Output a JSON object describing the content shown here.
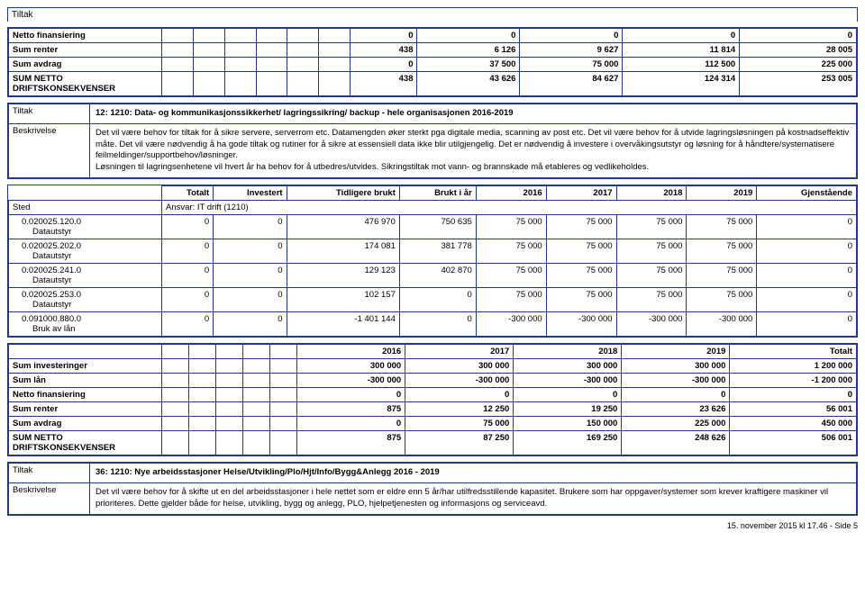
{
  "topLabel": "Tiltak",
  "table1": {
    "rows": [
      {
        "label": "Netto finansiering",
        "vals": [
          "0",
          "0",
          "0",
          "0",
          "0"
        ]
      },
      {
        "label": "Sum renter",
        "vals": [
          "438",
          "6 126",
          "9 627",
          "11 814",
          "28 005"
        ]
      },
      {
        "label": "Sum avdrag",
        "vals": [
          "0",
          "37 500",
          "75 000",
          "112 500",
          "225 000"
        ]
      },
      {
        "label": "SUM NETTO DRIFTSKONSEKVENSER",
        "vals": [
          "438",
          "43 626",
          "84 627",
          "124 314",
          "253 005"
        ]
      }
    ]
  },
  "tiltak2": {
    "labelTiltak": "Tiltak",
    "titel": "12: 1210: Data- og kommunikasjonssikkerhet/ lagringssikring/ backup - hele organisasjonen 2016-2019",
    "labelBesk": "Beskrivelse",
    "besk": "Det vil være behov for tiltak for å sikre servere, serverrom etc. Datamengden øker sterkt pga digitale media, scanning av post etc. Det vil være behov for å utvide lagringsløsningen på kostnadseffektiv måte. Det vil være nødvendig å ha gode tiltak og rutiner for å sikre at essensiell data ikke blir utilgjengelig. Det er nødvendig å investere i overvåkingsutstyr og løsning for å håndtere/systematisere feilmeldinger/supportbehov/løsninger.\nLøsningen til lagringsenhetene vil hvert år ha behov for å utbedres/utvides. Sikringstiltak mot vann- og brannskade må etableres og vedlikeholdes."
  },
  "table2": {
    "headers": [
      "",
      "Totalt",
      "Investert",
      "Tidligere brukt",
      "Brukt i år",
      "2016",
      "2017",
      "2018",
      "2019",
      "Gjenstående"
    ],
    "stedLabel": "Sted",
    "ansvar": "Ansvar: IT drift (1210)",
    "rows": [
      {
        "code": "0.020025.120.0",
        "sub": "Datautstyr",
        "vals": [
          "0",
          "0",
          "476 970",
          "750 635",
          "75 000",
          "75 000",
          "75 000",
          "75 000",
          "0"
        ]
      },
      {
        "code": "0.020025.202.0",
        "sub": "Datautstyr",
        "vals": [
          "0",
          "0",
          "174 081",
          "381 778",
          "75 000",
          "75 000",
          "75 000",
          "75 000",
          "0"
        ]
      },
      {
        "code": "0.020025.241.0",
        "sub": "Datautstyr",
        "vals": [
          "0",
          "0",
          "129 123",
          "402 870",
          "75 000",
          "75 000",
          "75 000",
          "75 000",
          "0"
        ]
      },
      {
        "code": "0.020025.253.0",
        "sub": "Datautstyr",
        "vals": [
          "0",
          "0",
          "102 157",
          "0",
          "75 000",
          "75 000",
          "75 000",
          "75 000",
          "0"
        ]
      },
      {
        "code": "0.091000.880.0",
        "sub": "Bruk av lån",
        "vals": [
          "0",
          "0",
          "-1 401 144",
          "0",
          "-300 000",
          "-300 000",
          "-300 000",
          "-300 000",
          "0"
        ]
      }
    ]
  },
  "table3": {
    "hdr": [
      "2016",
      "2017",
      "2018",
      "2019",
      "Totalt"
    ],
    "rows": [
      {
        "label": "Sum investeringer",
        "vals": [
          "300 000",
          "300 000",
          "300 000",
          "300 000",
          "1 200 000"
        ]
      },
      {
        "label": "Sum lån",
        "vals": [
          "-300 000",
          "-300 000",
          "-300 000",
          "-300 000",
          "-1 200 000"
        ]
      },
      {
        "label": "Netto finansiering",
        "vals": [
          "0",
          "0",
          "0",
          "0",
          "0"
        ]
      },
      {
        "label": "Sum renter",
        "vals": [
          "875",
          "12 250",
          "19 250",
          "23 626",
          "56 001"
        ]
      },
      {
        "label": "Sum avdrag",
        "vals": [
          "0",
          "75 000",
          "150 000",
          "225 000",
          "450 000"
        ]
      },
      {
        "label": "SUM NETTO DRIFTSKONSEKVENSER",
        "vals": [
          "875",
          "87 250",
          "169 250",
          "248 626",
          "506 001"
        ]
      }
    ]
  },
  "tiltak3": {
    "labelTiltak": "Tiltak",
    "titel": "36: 1210: Nye arbeidsstasjoner Helse/Utvikling/Plo/Hjt/Info/Bygg&Anlegg 2016 - 2019",
    "labelBesk": "Beskrivelse",
    "besk": "Det vil være behov for å skifte ut en del arbeidsstasjoner i hele nettet som er eldre enn 5 år/har utilfredsstillende kapasitet. Brukere som har oppgaver/systemer som krever kraftigere maskiner vil prioriteres. Dette gjelder både for helse, utvikling, bygg og anlegg, PLO, hjelpetjenesten og informasjons og serviceavd."
  },
  "footer": "15. november 2015 kl 17.46 - Side 5"
}
